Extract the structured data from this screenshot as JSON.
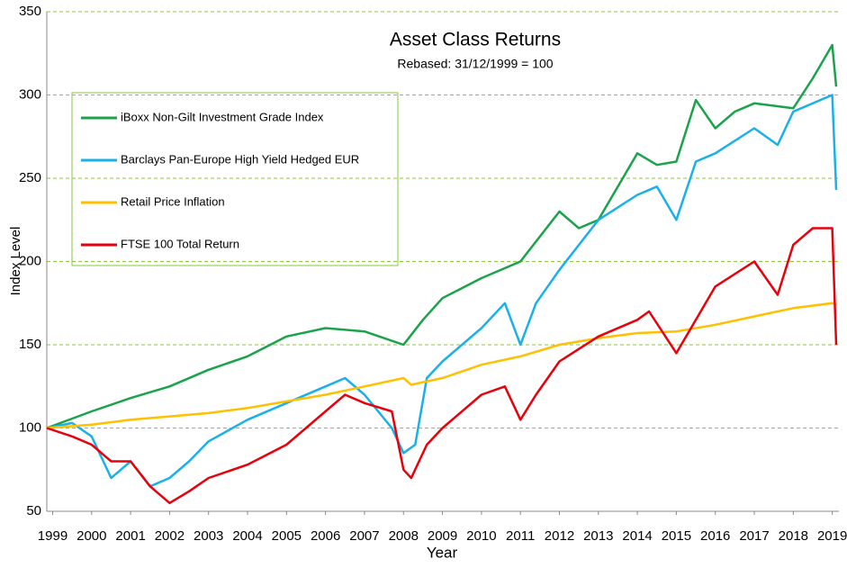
{
  "chart_data": {
    "type": "line",
    "title": "Asset Class Returns",
    "subtitle": "Rebased: 31/12/1999 = 100",
    "x_label": "Year",
    "y_label": "Index Level",
    "xlim": [
      1998.85,
      2019.17
    ],
    "xticks": [
      1999,
      2000,
      2001,
      2002,
      2003,
      2004,
      2005,
      2006,
      2007,
      2008,
      2009,
      2010,
      2011,
      2012,
      2013,
      2014,
      2015,
      2016,
      2017,
      2018,
      2019
    ],
    "ylim": [
      50,
      350
    ],
    "yticks": [
      50,
      100,
      150,
      200,
      250,
      300,
      350
    ],
    "grid": true,
    "legend": "upper left",
    "series": [
      {
        "name": "iBoxx Non-Gilt Investment Grade Index",
        "color": "#1aa34a",
        "x": [
          1998.85,
          2000,
          2001,
          2002,
          2003,
          2004,
          2005,
          2006,
          2007,
          2008,
          2008.5,
          2009,
          2010,
          2011,
          2012,
          2012.5,
          2013,
          2014,
          2014.5,
          2015,
          2015.5,
          2016,
          2016.5,
          2017,
          2018,
          2018.5,
          2019,
          2019.1
        ],
        "values": [
          100,
          110,
          118,
          125,
          135,
          143,
          155,
          160,
          158,
          150,
          165,
          178,
          190,
          200,
          230,
          220,
          225,
          265,
          258,
          260,
          297,
          280,
          290,
          295,
          292,
          310,
          330,
          305
        ]
      },
      {
        "name": "Barclays Pan-Europe High Yield Hedged EUR",
        "color": "#1ab0e8",
        "x": [
          1998.85,
          1999.5,
          2000,
          2000.5,
          2001,
          2001.5,
          2002,
          2002.5,
          2003,
          2004,
          2005,
          2006,
          2006.5,
          2007,
          2007.7,
          2008,
          2008.3,
          2008.6,
          2009,
          2010,
          2010.6,
          2011,
          2011.4,
          2012,
          2013,
          2014,
          2014.5,
          2015,
          2015.5,
          2016,
          2017,
          2017.6,
          2018,
          2019,
          2019.1
        ],
        "values": [
          100,
          103,
          95,
          70,
          80,
          65,
          70,
          80,
          92,
          105,
          115,
          125,
          130,
          120,
          100,
          85,
          90,
          130,
          140,
          160,
          175,
          150,
          175,
          195,
          225,
          240,
          245,
          225,
          260,
          265,
          280,
          270,
          290,
          300,
          243
        ]
      },
      {
        "name": "Retail Price Inflation",
        "color": "#ffc000",
        "x": [
          1998.85,
          2000,
          2001,
          2002,
          2003,
          2004,
          2005,
          2006,
          2007,
          2008,
          2008.2,
          2009,
          2010,
          2011,
          2012,
          2013,
          2014,
          2015,
          2016,
          2017,
          2018,
          2019,
          2019.1
        ],
        "values": [
          100,
          102,
          105,
          107,
          109,
          112,
          116,
          120,
          125,
          130,
          126,
          130,
          138,
          143,
          150,
          154,
          157,
          158,
          162,
          167,
          172,
          175,
          174
        ]
      },
      {
        "name": "FTSE 100 Total Return",
        "color": "#e8000b",
        "x": [
          1998.85,
          1999.5,
          2000,
          2000.5,
          2001,
          2001.5,
          2002,
          2002.5,
          2003,
          2004,
          2005,
          2006,
          2006.5,
          2007,
          2007.7,
          2008,
          2008.2,
          2008.6,
          2009,
          2010,
          2010.6,
          2011,
          2011.4,
          2012,
          2013,
          2014,
          2014.3,
          2015,
          2015.5,
          2016,
          2017,
          2017.6,
          2018,
          2018.5,
          2019,
          2019.1
        ],
        "values": [
          100,
          95,
          90,
          80,
          80,
          65,
          55,
          62,
          70,
          78,
          90,
          110,
          120,
          115,
          110,
          75,
          70,
          90,
          100,
          120,
          125,
          105,
          120,
          140,
          155,
          165,
          170,
          145,
          165,
          185,
          200,
          180,
          210,
          220,
          220,
          150
        ]
      }
    ]
  }
}
